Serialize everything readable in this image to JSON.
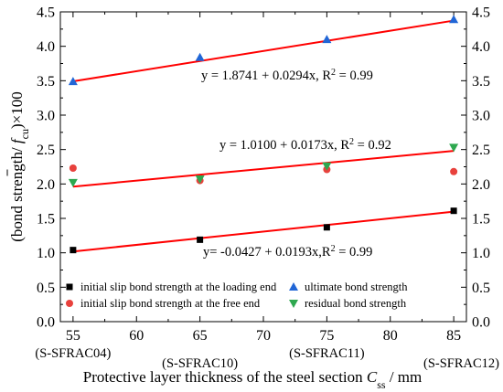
{
  "chart_data": {
    "type": "scatter",
    "x": [
      55,
      65,
      75,
      85
    ],
    "x_sublabels": [
      "(S-SFRAC04)",
      "(S-SFRAC10)",
      "(S-SFRAC11)",
      "(S-SFRAC12)"
    ],
    "xlim": [
      54,
      86
    ],
    "ylim": [
      0.0,
      4.5
    ],
    "xticks": [
      "55",
      "60",
      "65",
      "70",
      "75",
      "80",
      "85"
    ],
    "yticks": [
      "0.0",
      "0.5",
      "1.0",
      "1.5",
      "2.0",
      "2.5",
      "3.0",
      "3.5",
      "4.0",
      "4.5"
    ],
    "xlabel_main": "Protective layer thickness of the steel section ",
    "xlabel_var": "C",
    "xlabel_sub": "ss",
    "xlabel_unit": " / mm",
    "ylabel_pre": "(bond strength",
    "ylabel_mid": "/ ",
    "ylabel_var": "f",
    "ylabel_sub": "cu",
    "ylabel_post": ")×100",
    "grid": false,
    "legend_position": "bottom",
    "series": [
      {
        "name": "initial slip bond strength at the loading end",
        "marker": "square",
        "color": "#000000",
        "values": [
          1.04,
          1.19,
          1.37,
          1.61
        ]
      },
      {
        "name": "initial slip bond strength at the free end",
        "marker": "circle",
        "color": "#e8413c",
        "values": [
          2.23,
          2.05,
          2.21,
          2.18
        ]
      },
      {
        "name": "ultimate bond strength",
        "marker": "triangle-up",
        "color": "#2166d6",
        "values": [
          3.49,
          3.84,
          4.1,
          4.39
        ]
      },
      {
        "name": "residual bond strength",
        "marker": "triangle-down",
        "color": "#2ea84f",
        "values": [
          2.02,
          2.07,
          2.26,
          2.53
        ]
      }
    ],
    "fits": [
      {
        "intercept": 1.8741,
        "slope": 0.0294,
        "color": "#ff0000",
        "label_pre": "y = 1.8741 + 0.0294x, R",
        "label_sup": "2",
        "label_post": " = 0.99"
      },
      {
        "intercept": 1.01,
        "slope": 0.0173,
        "color": "#ff0000",
        "label_pre": "y = 1.0100 + 0.0173x, R",
        "label_sup": "2",
        "label_post": " = 0.92"
      },
      {
        "intercept": -0.0427,
        "slope": 0.0193,
        "color": "#ff0000",
        "label_pre": "y= -0.0427 + 0.0193x,R",
        "label_sup": "2",
        "label_post": " = 0.99"
      }
    ]
  }
}
